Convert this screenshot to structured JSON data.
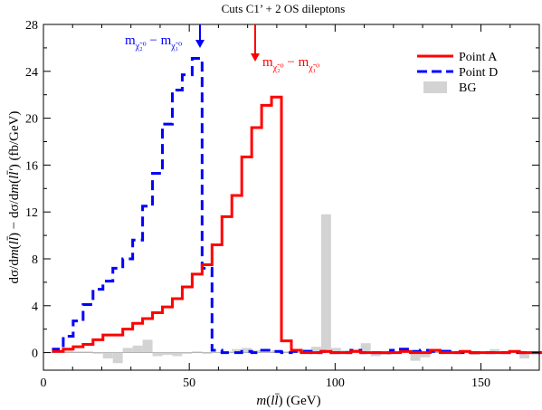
{
  "chart_data": {
    "type": "step-histogram",
    "title": "Cuts C1’ + 2 OS dileptons",
    "xlabel": "m(l l̄) (GeV)",
    "ylabel": "dσ/dm(l l̄) − dσ/dm(l l̄′) (fb/GeV)",
    "xlim": [
      0,
      170
    ],
    "ylim": [
      -1.5,
      28
    ],
    "xticks": [
      "0",
      "50",
      "100",
      "150"
    ],
    "yticks": [
      "0",
      "4",
      "8",
      "12",
      "16",
      "20",
      "24",
      "28"
    ],
    "bin_width": 3.4,
    "legend": {
      "position": "top-right"
    },
    "series": [
      {
        "name": "Point A",
        "color": "#ff0000",
        "style": "solid",
        "bin_start": 3.4,
        "values": [
          0.1,
          0.3,
          0.5,
          0.7,
          1.1,
          1.5,
          1.5,
          2.0,
          2.5,
          2.9,
          3.4,
          3.9,
          4.6,
          5.6,
          6.7,
          7.5,
          9.2,
          11.6,
          13.4,
          16.7,
          19.2,
          21.1,
          21.8,
          1.0,
          0.2,
          0.0,
          0.0,
          0.1,
          0.0,
          0.0,
          0.1,
          0.0,
          0.0,
          0.0,
          0.0,
          0.1,
          0.0,
          0.0,
          0.2,
          0.0,
          0.0,
          0.1,
          0.0,
          0.0,
          0.0,
          0.0,
          0.1,
          0.0,
          0.0,
          0.0
        ]
      },
      {
        "name": "Point D",
        "color": "#0000ff",
        "style": "dashed",
        "bin_start": 3.4,
        "values": [
          0.3,
          1.4,
          2.7,
          4.1,
          5.4,
          6.1,
          7.2,
          8.0,
          9.6,
          12.5,
          15.3,
          19.5,
          22.4,
          23.7,
          25.1,
          7.2,
          0.2,
          0.0,
          0.0,
          0.1,
          0.0,
          0.2,
          0.1,
          0.0,
          0.1,
          0.1,
          0.0,
          0.1,
          0.0,
          0.0,
          0.2,
          0.0,
          0.0,
          0.0,
          0.2,
          0.3,
          0.1,
          0.2,
          0.1,
          0.1,
          0.0,
          0.0,
          0.0,
          0.0,
          0.0,
          0.0,
          0.0,
          0.0,
          0.0,
          0.0
        ]
      },
      {
        "name": "BG",
        "color": "#d3d3d3",
        "style": "filled",
        "bin_start": 6.8,
        "values": [
          0.2,
          0.1,
          0.1,
          -0.1,
          -0.5,
          -0.9,
          0.4,
          0.6,
          1.1,
          -0.3,
          -0.2,
          -0.3,
          -0.1,
          0.1,
          -0.1,
          0.0,
          0.1,
          0.3,
          0.4,
          0.2,
          0.0,
          0.2,
          0.1,
          0.0,
          0.3,
          0.5,
          11.8,
          0.4,
          0.2,
          0.3,
          0.8,
          -0.3,
          -0.2,
          0.0,
          0.1,
          -0.7,
          -0.4,
          0.2,
          0.3,
          0.1,
          0.2,
          -0.2,
          -0.1,
          0.3,
          0.0,
          0.2,
          -0.5,
          0.1
        ]
      }
    ],
    "annotations": [
      {
        "id": "diff-D",
        "text": "m χ̃₂⁰ − m χ̃₁⁰",
        "color": "#0000ff",
        "arrow_x": 53.5
      },
      {
        "id": "diff-A",
        "text": "m χ̃₂⁰ − m χ̃₁⁰",
        "color": "#ff0000",
        "arrow_x": 72.5
      }
    ]
  }
}
